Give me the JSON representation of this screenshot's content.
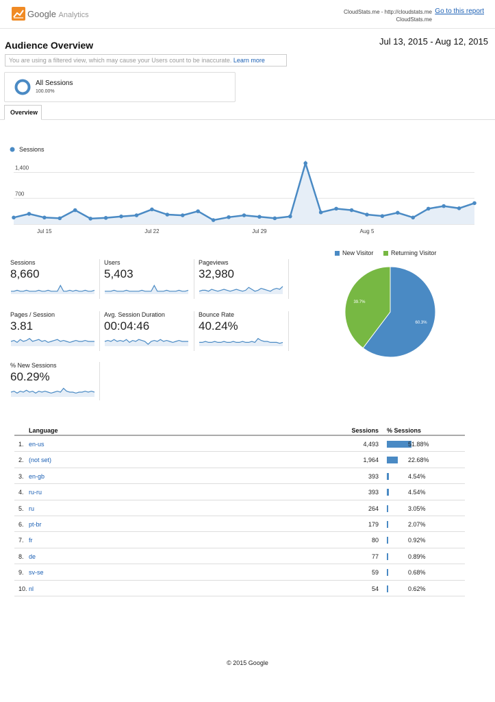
{
  "header": {
    "logo_brand": "Google",
    "logo_product": "Analytics",
    "property_line1": "CloudStats.me - http://cloudstats.me",
    "property_line2": "CloudStats.me",
    "goto_link": "Go to this report"
  },
  "page": {
    "title": "Audience Overview",
    "date_range": "Jul 13, 2015 - Aug 12, 2015",
    "warning_text": "You are using a filtered view, which may cause your Users count to be inaccurate.",
    "warning_link": "Learn more"
  },
  "segment": {
    "name": "All Sessions",
    "pct": "100.00%"
  },
  "tabs": [
    {
      "label": "Overview"
    }
  ],
  "colors": {
    "accent": "#4a8ac4",
    "green": "#77b843",
    "link": "#1a5fb4"
  },
  "chart_data": [
    {
      "type": "area",
      "legend": [
        "Sessions"
      ],
      "series": [
        {
          "name": "Sessions",
          "values": [
            180,
            280,
            180,
            160,
            380,
            150,
            170,
            210,
            240,
            400,
            260,
            240,
            350,
            110,
            190,
            240,
            200,
            160,
            210,
            1650,
            320,
            420,
            380,
            260,
            220,
            310,
            180,
            420,
            490,
            430,
            570
          ]
        }
      ],
      "x": [
        "Jul 13",
        "Jul 14",
        "Jul 15",
        "Jul 16",
        "Jul 17",
        "Jul 18",
        "Jul 19",
        "Jul 20",
        "Jul 21",
        "Jul 22",
        "Jul 23",
        "Jul 24",
        "Jul 25",
        "Jul 26",
        "Jul 27",
        "Jul 28",
        "Jul 29",
        "Jul 30",
        "Jul 31",
        "Aug 1",
        "Aug 2",
        "Aug 3",
        "Aug 4",
        "Aug 5",
        "Aug 6",
        "Aug 7",
        "Aug 8",
        "Aug 9",
        "Aug 10",
        "Aug 11",
        "Aug 12"
      ],
      "x_ticks": [
        "Jul 15",
        "Jul 22",
        "Jul 29",
        "Aug 5"
      ],
      "y_ticks": [
        "1,400",
        "700"
      ],
      "ylim": [
        0,
        1800
      ],
      "grid": true
    },
    {
      "type": "pie",
      "legend": [
        "New Visitor",
        "Returning Visitor"
      ],
      "slices": [
        {
          "name": "New Visitor",
          "value": 60.3,
          "label": "60.3%",
          "color": "#4a8ac4"
        },
        {
          "name": "Returning Visitor",
          "value": 39.7,
          "label": "39.7%",
          "color": "#77b843"
        }
      ]
    }
  ],
  "metrics": [
    {
      "label": "Sessions",
      "value": "8,660",
      "spark": [
        3,
        3,
        4,
        3,
        3,
        4,
        3,
        3,
        3,
        4,
        3,
        3,
        4,
        3,
        3,
        3,
        9,
        3,
        3,
        4,
        3,
        4,
        3,
        3,
        4,
        3,
        3,
        4
      ]
    },
    {
      "label": "Users",
      "value": "5,403",
      "spark": [
        3,
        3,
        3,
        4,
        3,
        3,
        3,
        4,
        3,
        3,
        3,
        3,
        4,
        3,
        3,
        3,
        9,
        3,
        3,
        3,
        4,
        3,
        3,
        3,
        4,
        3,
        3,
        4
      ]
    },
    {
      "label": "Pageviews",
      "value": "32,980",
      "spark": [
        3,
        4,
        4,
        3,
        5,
        4,
        3,
        4,
        5,
        4,
        3,
        4,
        5,
        4,
        3,
        4,
        7,
        5,
        3,
        4,
        6,
        5,
        4,
        3,
        5,
        6,
        5,
        8
      ]
    },
    {
      "label": "Pages / Session",
      "value": "3.81",
      "spark": [
        5,
        6,
        4,
        7,
        5,
        6,
        8,
        5,
        6,
        7,
        5,
        6,
        4,
        5,
        6,
        7,
        5,
        6,
        5,
        4,
        5,
        6,
        5,
        5,
        6,
        5,
        5,
        5
      ]
    },
    {
      "label": "Avg. Session Duration",
      "value": "00:04:46",
      "spark": [
        5,
        6,
        5,
        7,
        5,
        6,
        5,
        7,
        4,
        6,
        5,
        7,
        6,
        5,
        2,
        5,
        6,
        5,
        7,
        5,
        6,
        5,
        4,
        5,
        6,
        5,
        5,
        5
      ]
    },
    {
      "label": "Bounce Rate",
      "value": "40.24%",
      "spark": [
        4,
        4,
        5,
        4,
        4,
        5,
        4,
        4,
        5,
        4,
        4,
        5,
        4,
        4,
        5,
        4,
        4,
        5,
        4,
        8,
        6,
        5,
        5,
        4,
        4,
        4,
        3,
        4
      ]
    },
    {
      "label": "% New Sessions",
      "value": "60.29%",
      "spark": [
        5,
        6,
        4,
        6,
        5,
        7,
        5,
        6,
        4,
        6,
        5,
        6,
        5,
        4,
        5,
        6,
        5,
        9,
        6,
        5,
        5,
        4,
        5,
        5,
        6,
        5,
        6,
        5
      ]
    }
  ],
  "table": {
    "headers": {
      "language": "Language",
      "sessions": "Sessions",
      "pct": "% Sessions"
    },
    "rows": [
      {
        "num": "1.",
        "lang": "en-us",
        "sessions": "4,493",
        "pct": "51.88%",
        "share": 51.88
      },
      {
        "num": "2.",
        "lang": "(not set)",
        "sessions": "1,964",
        "pct": "22.68%",
        "share": 22.68
      },
      {
        "num": "3.",
        "lang": "en-gb",
        "sessions": "393",
        "pct": "4.54%",
        "share": 4.54
      },
      {
        "num": "4.",
        "lang": "ru-ru",
        "sessions": "393",
        "pct": "4.54%",
        "share": 4.54
      },
      {
        "num": "5.",
        "lang": "ru",
        "sessions": "264",
        "pct": "3.05%",
        "share": 3.05
      },
      {
        "num": "6.",
        "lang": "pt-br",
        "sessions": "179",
        "pct": "2.07%",
        "share": 2.07
      },
      {
        "num": "7.",
        "lang": "fr",
        "sessions": "80",
        "pct": "0.92%",
        "share": 0.92
      },
      {
        "num": "8.",
        "lang": "de",
        "sessions": "77",
        "pct": "0.89%",
        "share": 0.89
      },
      {
        "num": "9.",
        "lang": "sv-se",
        "sessions": "59",
        "pct": "0.68%",
        "share": 0.68
      },
      {
        "num": "10.",
        "lang": "nl",
        "sessions": "54",
        "pct": "0.62%",
        "share": 0.62
      }
    ]
  },
  "footer": {
    "text": "© 2015 Google"
  }
}
